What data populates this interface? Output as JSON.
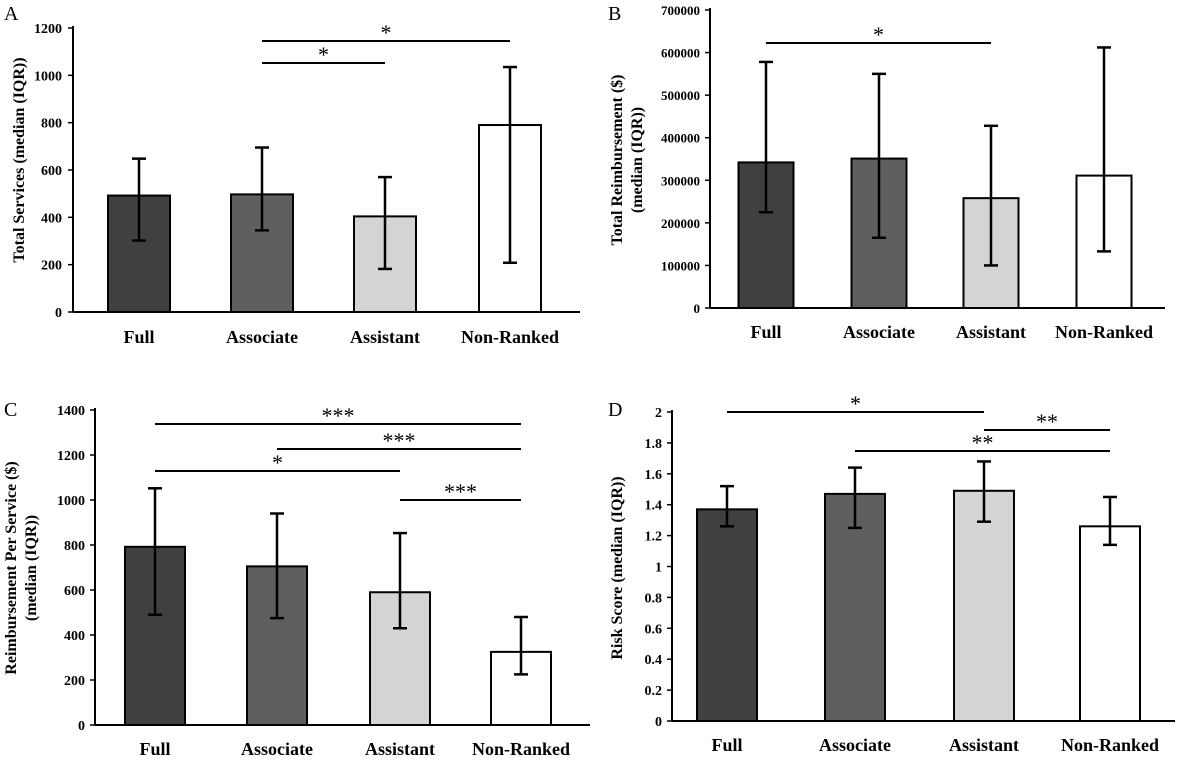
{
  "colors": {
    "Full": "#404040",
    "Associate": "#5f5f5f",
    "Assistant": "#d4d4d4",
    "Non-Ranked": "#ffffff",
    "axis": "#000000"
  },
  "chart_data": [
    {
      "panel": "A",
      "type": "bar",
      "categories": [
        "Full",
        "Associate",
        "Assistant",
        "Non-Ranked"
      ],
      "values": [
        492,
        497,
        404,
        790
      ],
      "error_low": [
        302,
        345,
        182,
        208
      ],
      "error_high": [
        648,
        695,
        570,
        1035
      ],
      "ylabel": "Total Services (median (IQR))",
      "ylim": [
        0,
        1200
      ],
      "yticks": [
        "0",
        "200",
        "400",
        "600",
        "800",
        "1000",
        "1200"
      ],
      "significance": [
        {
          "from": "Associate",
          "to": "Assistant",
          "label": "*"
        },
        {
          "from": "Associate",
          "to": "Non-Ranked",
          "label": "*"
        }
      ]
    },
    {
      "panel": "B",
      "type": "bar",
      "categories": [
        "Full",
        "Associate",
        "Assistant",
        "Non-Ranked"
      ],
      "values": [
        342000,
        351000,
        258000,
        311000
      ],
      "error_low": [
        225000,
        165000,
        100000,
        133000
      ],
      "error_high": [
        578000,
        550000,
        428000,
        612000
      ],
      "ylabel": "Total Reimbursement ($) (median (IQR))",
      "ylabel_lines": [
        "Total Reimbursement ($)",
        "(median (IQR))"
      ],
      "ylim": [
        0,
        700000
      ],
      "yticks": [
        "0",
        "100000",
        "200000",
        "300000",
        "400000",
        "500000",
        "600000",
        "700000"
      ],
      "significance": [
        {
          "from": "Full",
          "to": "Assistant",
          "label": "*"
        }
      ]
    },
    {
      "panel": "C",
      "type": "bar",
      "categories": [
        "Full",
        "Associate",
        "Assistant",
        "Non-Ranked"
      ],
      "values": [
        792,
        705,
        590,
        325
      ],
      "error_low": [
        490,
        475,
        430,
        225
      ],
      "error_high": [
        1052,
        940,
        853,
        480
      ],
      "ylabel": "Reimbursement Per Service ($) (median (IQR))",
      "ylabel_lines": [
        "Reimbursement Per Service ($)",
        "(median (IQR))"
      ],
      "ylim": [
        0,
        1400
      ],
      "yticks": [
        "0",
        "200",
        "400",
        "600",
        "800",
        "1000",
        "1200",
        "1400"
      ],
      "significance": [
        {
          "from": "Full",
          "to": "Non-Ranked",
          "label": "***"
        },
        {
          "from": "Associate",
          "to": "Non-Ranked",
          "label": "***"
        },
        {
          "from": "Full",
          "to": "Assistant",
          "label": "*"
        },
        {
          "from": "Assistant",
          "to": "Non-Ranked",
          "label": "***"
        }
      ]
    },
    {
      "panel": "D",
      "type": "bar",
      "categories": [
        "Full",
        "Associate",
        "Assistant",
        "Non-Ranked"
      ],
      "values": [
        1.37,
        1.47,
        1.49,
        1.26
      ],
      "error_low": [
        1.26,
        1.25,
        1.29,
        1.14
      ],
      "error_high": [
        1.52,
        1.64,
        1.68,
        1.45
      ],
      "ylabel": "Risk Score (median (IQR))",
      "ylim": [
        0,
        2
      ],
      "yticks": [
        "0",
        "0.2",
        "0.4",
        "0.6",
        "0.8",
        "1",
        "1.2",
        "1.4",
        "1.6",
        "1.8",
        "2"
      ],
      "significance": [
        {
          "from": "Full",
          "to": "Assistant",
          "label": "*"
        },
        {
          "from": "Assistant",
          "to": "Non-Ranked",
          "label": "**"
        },
        {
          "from": "Associate",
          "to": "Non-Ranked",
          "label": "**"
        }
      ]
    }
  ]
}
